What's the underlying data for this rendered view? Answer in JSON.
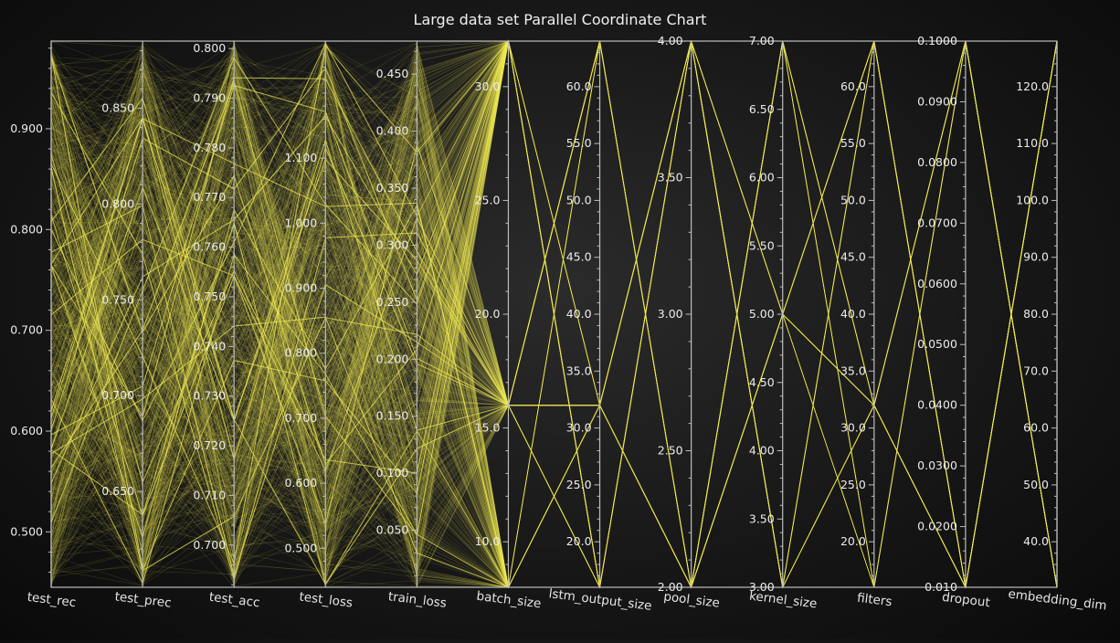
{
  "chart_data": {
    "type": "parallel_coordinates",
    "title": "Large data set Parallel Coordinate Chart",
    "line_color": "#f2ea55",
    "grid": false,
    "axes": [
      {
        "name": "test_rec",
        "range": [
          0.445,
          0.987
        ],
        "ticks": [
          0.5,
          0.6,
          0.7,
          0.8,
          0.9
        ],
        "tick_labels": [
          "0.500",
          "0.600",
          "0.700",
          "0.800",
          "0.900"
        ],
        "label_side": "left"
      },
      {
        "name": "test_prec",
        "range": [
          0.6,
          0.885
        ],
        "ticks": [
          0.65,
          0.7,
          0.75,
          0.8,
          0.85
        ],
        "tick_labels": [
          "0.650",
          "0.700",
          "0.750",
          "0.800",
          "0.850"
        ],
        "label_side": "left"
      },
      {
        "name": "test_acc",
        "range": [
          0.6915,
          0.8015
        ],
        "ticks": [
          0.7,
          0.71,
          0.72,
          0.73,
          0.74,
          0.75,
          0.76,
          0.77,
          0.78,
          0.79,
          0.8
        ],
        "tick_labels": [
          "0.700",
          "0.710",
          "0.720",
          "0.730",
          "0.740",
          "0.750",
          "0.760",
          "0.770",
          "0.780",
          "0.790",
          "0.800"
        ],
        "label_side": "left"
      },
      {
        "name": "test_loss",
        "range": [
          0.44,
          1.28
        ],
        "ticks": [
          0.5,
          0.6,
          0.7,
          0.8,
          0.9,
          1.0,
          1.1
        ],
        "tick_labels": [
          "0.500",
          "0.600",
          "0.700",
          "0.800",
          "0.900",
          "1.000",
          "1.100"
        ],
        "label_side": "left"
      },
      {
        "name": "train_loss",
        "range": [
          0.0,
          0.479
        ],
        "ticks": [
          0.05,
          0.1,
          0.15,
          0.2,
          0.25,
          0.3,
          0.35,
          0.4,
          0.45
        ],
        "tick_labels": [
          "0.050",
          "0.100",
          "0.150",
          "0.200",
          "0.250",
          "0.300",
          "0.350",
          "0.400",
          "0.450"
        ],
        "label_side": "left"
      },
      {
        "name": "batch_size",
        "range": [
          8.0,
          32.0
        ],
        "ticks": [
          10,
          15,
          20,
          25,
          30
        ],
        "tick_labels": [
          "10.0",
          "15.0",
          "20.0",
          "25.0",
          "30.0"
        ],
        "label_side": "left"
      },
      {
        "name": "lstm_output_size",
        "range": [
          16.0,
          64.0
        ],
        "ticks": [
          20,
          25,
          30,
          35,
          40,
          45,
          50,
          55,
          60
        ],
        "tick_labels": [
          "20.0",
          "25.0",
          "30.0",
          "35.0",
          "40.0",
          "45.0",
          "50.0",
          "55.0",
          "60.0"
        ],
        "label_side": "left"
      },
      {
        "name": "pool_size",
        "range": [
          2.0,
          4.0
        ],
        "ticks": [
          2.0,
          2.5,
          3.0,
          3.5,
          4.0
        ],
        "tick_labels": [
          "2.00",
          "2.50",
          "3.00",
          "3.50",
          "4.00"
        ],
        "label_side": "left"
      },
      {
        "name": "kernel_size",
        "range": [
          3.0,
          7.0
        ],
        "ticks": [
          3.0,
          3.5,
          4.0,
          4.5,
          5.0,
          5.5,
          6.0,
          6.5,
          7.0
        ],
        "tick_labels": [
          "3.00",
          "3.50",
          "4.00",
          "4.50",
          "5.00",
          "5.50",
          "6.00",
          "6.50",
          "7.00"
        ],
        "label_side": "left"
      },
      {
        "name": "filters",
        "range": [
          16.0,
          64.0
        ],
        "ticks": [
          20,
          25,
          30,
          35,
          40,
          45,
          50,
          55,
          60
        ],
        "tick_labels": [
          "20.0",
          "25.0",
          "30.0",
          "35.0",
          "40.0",
          "45.0",
          "50.0",
          "55.0",
          "60.0"
        ],
        "label_side": "left"
      },
      {
        "name": "dropout",
        "range": [
          0.01,
          0.1
        ],
        "ticks": [
          0.01,
          0.02,
          0.03,
          0.04,
          0.05,
          0.06,
          0.07,
          0.08,
          0.09,
          0.1
        ],
        "tick_labels": [
          "0.010",
          "0.0200",
          "0.0300",
          "0.0400",
          "0.0500",
          "0.0600",
          "0.0700",
          "0.0800",
          "0.0900",
          "0.1000"
        ],
        "label_side": "left"
      },
      {
        "name": "embedding_dim",
        "range": [
          32.0,
          128.0
        ],
        "ticks": [
          40,
          50,
          60,
          70,
          80,
          90,
          100,
          110,
          120
        ],
        "tick_labels": [
          "40.0",
          "50.0",
          "60.0",
          "70.0",
          "80.0",
          "90.0",
          "100.0",
          "110.0",
          "120.0"
        ],
        "label_side": "left"
      }
    ],
    "row_count": 900,
    "rows_note_values": {
      "batch_size": [
        8,
        16,
        32
      ],
      "lstm_output_size": [
        16,
        32,
        64
      ],
      "pool_size": [
        2,
        4
      ],
      "kernel_size": [
        3,
        5,
        7
      ],
      "filters": [
        16,
        32,
        64
      ],
      "dropout": [
        0.01,
        0.1
      ],
      "embedding_dim": [
        32,
        128
      ]
    }
  }
}
